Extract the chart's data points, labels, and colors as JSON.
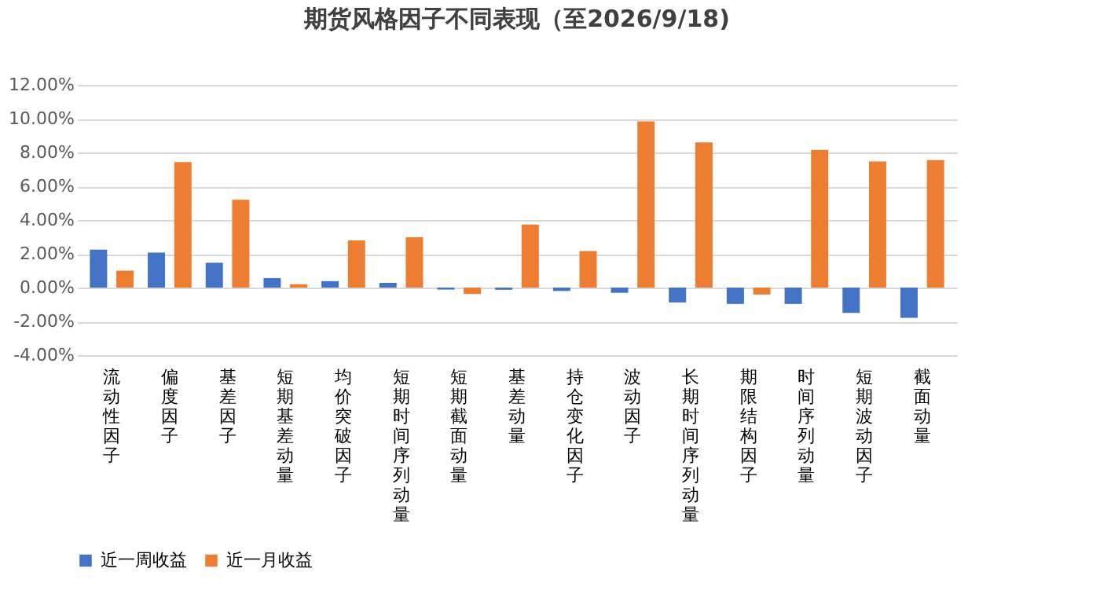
{
  "chart_data": {
    "type": "bar",
    "title": "期货风格因子不同表现（至2026/9/18)",
    "categories": [
      "流动性因子",
      "偏度因子",
      "基差因子",
      "短期基差动量",
      "均价突破因子",
      "短期时间序列动量",
      "短期截面动量",
      "基差动量",
      "持仓变化因子",
      "波动因子",
      "长期时间序列动量",
      "期限结构因子",
      "时间序列动量",
      "短期波动因子",
      "截面动量"
    ],
    "series": [
      {
        "name": "近一周收益",
        "color": "#4472c4",
        "values": [
          2.25,
          2.07,
          1.47,
          0.56,
          0.38,
          0.28,
          -0.12,
          -0.13,
          -0.2,
          -0.31,
          -0.88,
          -0.97,
          -0.97,
          -1.5,
          -1.79
        ]
      },
      {
        "name": "近一月收益",
        "color": "#ed7d31",
        "values": [
          1.0,
          7.43,
          5.2,
          0.2,
          2.79,
          2.98,
          -0.38,
          3.73,
          2.16,
          9.84,
          8.59,
          -0.41,
          8.15,
          7.46,
          7.55
        ]
      }
    ],
    "ylim": [
      -4,
      12
    ],
    "yticks": [
      {
        "value": -4,
        "label": "-4.00%"
      },
      {
        "value": -2,
        "label": "-2.00%"
      },
      {
        "value": 0,
        "label": "0.00%"
      },
      {
        "value": 2,
        "label": "2.00%"
      },
      {
        "value": 4,
        "label": "4.00%"
      },
      {
        "value": 6,
        "label": "6.00%"
      },
      {
        "value": 8,
        "label": "8.00%"
      },
      {
        "value": 10,
        "label": "10.00%"
      },
      {
        "value": 12,
        "label": "12.00%"
      }
    ],
    "grid": "y",
    "legend": "bottom"
  }
}
